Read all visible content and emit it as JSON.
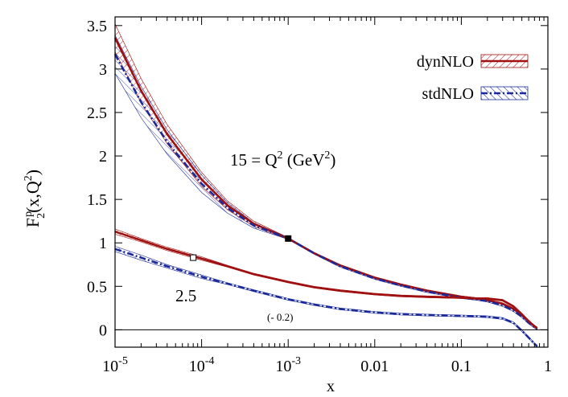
{
  "chart_data": {
    "type": "line",
    "xlabel": "x",
    "ylabel": {
      "base": "F",
      "sub": "2",
      "sup": "p",
      "rest": "(x,Q",
      "sup2": "2",
      "close": ")"
    },
    "x_scale": "log",
    "xlim": [
      1e-05,
      1
    ],
    "ylim": [
      -0.2,
      3.6
    ],
    "x_ticks": [
      {
        "value": 1e-05,
        "base": "10",
        "exp": "-5"
      },
      {
        "value": 0.0001,
        "base": "10",
        "exp": "-4"
      },
      {
        "value": 0.001,
        "base": "10",
        "exp": "-3"
      },
      {
        "value": 0.01,
        "base": "0.01",
        "exp": ""
      },
      {
        "value": 0.1,
        "base": "0.1",
        "exp": ""
      },
      {
        "value": 1,
        "base": "1",
        "exp": ""
      }
    ],
    "y_ticks": [
      {
        "value": 0,
        "label": "0"
      },
      {
        "value": 0.5,
        "label": "0.5"
      },
      {
        "value": 1,
        "label": "1"
      },
      {
        "value": 1.5,
        "label": "1.5"
      },
      {
        "value": 2,
        "label": "2"
      },
      {
        "value": 2.5,
        "label": "2.5"
      },
      {
        "value": 3,
        "label": "3"
      },
      {
        "value": 3.5,
        "label": "3.5"
      }
    ],
    "zero_line": true,
    "legend": {
      "placement": "top-right",
      "entries": [
        {
          "name": "dynNLO",
          "color": "#a01010",
          "style": "solid-hatched"
        },
        {
          "name": "stdNLO",
          "color": "#1a2a9a",
          "style": "dashdot-hatched"
        }
      ]
    },
    "annotations": {
      "q15": {
        "base": "15 = Q",
        "sup": "2",
        "mid": " (GeV",
        "sup2": "2",
        "close": ")"
      },
      "q25": "2.5",
      "shift": "(- 0.2)"
    },
    "x": [
      1e-05,
      2e-05,
      4e-05,
      0.0001,
      0.0002,
      0.0004,
      0.001,
      0.002,
      0.004,
      0.01,
      0.02,
      0.04,
      0.1,
      0.15,
      0.2,
      0.3,
      0.4,
      0.5,
      0.6,
      0.7,
      0.75
    ],
    "series": [
      {
        "name": "dynNLO",
        "group": "Q2=15",
        "color": "#a01010",
        "dash": "none",
        "values": [
          3.36,
          2.75,
          2.25,
          1.73,
          1.43,
          1.22,
          1.05,
          0.88,
          0.74,
          0.6,
          0.52,
          0.45,
          0.38,
          0.36,
          0.34,
          0.3,
          0.24,
          0.17,
          0.1,
          0.04,
          0.02
        ],
        "band": [
          0.16,
          0.14,
          0.11,
          0.08,
          0.05,
          0.03,
          0.01,
          0.01,
          0.01,
          0.01,
          0.01,
          0.01,
          0.01,
          0.01,
          0.01,
          0.01,
          0.01,
          0.01,
          0.01,
          0.01,
          0.01
        ]
      },
      {
        "name": "stdNLO",
        "group": "Q2=15",
        "color": "#1a2a9a",
        "dash": "8 3 2 3",
        "values": [
          3.17,
          2.62,
          2.16,
          1.68,
          1.4,
          1.2,
          1.05,
          0.88,
          0.73,
          0.59,
          0.51,
          0.44,
          0.37,
          0.35,
          0.33,
          0.28,
          0.22,
          0.15,
          0.08,
          0.03,
          0.01
        ],
        "band": [
          0.22,
          0.18,
          0.14,
          0.1,
          0.06,
          0.03,
          0.01,
          0.01,
          0.01,
          0.01,
          0.01,
          0.01,
          0.01,
          0.01,
          0.01,
          0.01,
          0.01,
          0.01,
          0.01,
          0.01,
          0.01
        ]
      },
      {
        "name": "dynNLO",
        "group": "Q2=2.5",
        "color": "#a01010",
        "dash": "none",
        "values": [
          1.13,
          1.03,
          0.93,
          0.82,
          0.73,
          0.64,
          0.55,
          0.49,
          0.45,
          0.41,
          0.39,
          0.38,
          0.37,
          0.36,
          0.36,
          0.34,
          0.27,
          0.18,
          0.1,
          0.04,
          0.02
        ],
        "band": [
          0.03,
          0.02,
          0.02,
          0.02,
          0.01,
          0.01,
          0.01,
          0.01,
          0.01,
          0.01,
          0.01,
          0.01,
          0.01,
          0.01,
          0.01,
          0.01,
          0.01,
          0.01,
          0.01,
          0.01,
          0.01
        ]
      },
      {
        "name": "stdNLO",
        "group": "Q2=2.5",
        "color": "#1a2a9a",
        "dash": "8 3 2 3",
        "values": [
          0.93,
          0.83,
          0.73,
          0.61,
          0.53,
          0.45,
          0.35,
          0.29,
          0.24,
          0.2,
          0.18,
          0.17,
          0.16,
          0.155,
          0.15,
          0.13,
          0.08,
          -0.01,
          -0.09,
          -0.16,
          -0.19
        ],
        "band": [
          0.03,
          0.03,
          0.02,
          0.02,
          0.01,
          0.01,
          0.01,
          0.01,
          0.01,
          0.01,
          0.01,
          0.01,
          0.01,
          0.01,
          0.01,
          0.01,
          0.01,
          0.01,
          0.01,
          0.01,
          0.01
        ]
      }
    ],
    "markers": [
      {
        "x": 0.001,
        "y": 1.05,
        "style": "filled-square"
      },
      {
        "x": 8e-05,
        "y": 0.83,
        "style": "open-square"
      }
    ]
  }
}
